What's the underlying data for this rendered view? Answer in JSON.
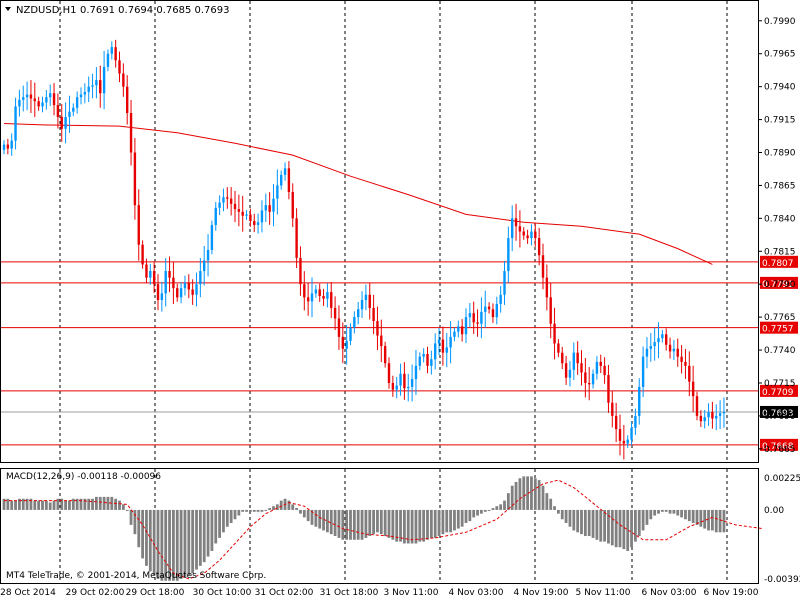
{
  "header": {
    "symbol": "NZDUSD,H1",
    "ohlc": "0.7691 0.7694 0.7685 0.7693",
    "dropdown_icon": "triangle-down-icon"
  },
  "macd_panel": {
    "label": "MACD(12,26,9) -0.00118 -0.00096",
    "scale_labels": [
      "0.00225",
      "0.00",
      "-0.00392"
    ]
  },
  "footer": {
    "copyright": "MT4 TeleTrade, © 2001-2014, MetaQuotes Software Corp."
  },
  "colors": {
    "bull_candle": "#0096ff",
    "bear_candle": "#e60000",
    "moving_average": "#e60000",
    "level_line": "#e60000",
    "price_tag_bg": "#e60000",
    "current_price_line": "#9e9e9e",
    "macd_histogram": "#808080",
    "macd_signal": "#e60000"
  },
  "chart_data": [
    {
      "type": "candlestick",
      "title": "NZDUSD,H1",
      "ylim": [
        0.7655,
        0.8002
      ],
      "yticks": [
        "0.7990",
        "0.7965",
        "0.7940",
        "0.7915",
        "0.7890",
        "0.7865",
        "0.7840",
        "0.7815",
        "0.7790",
        "0.7765",
        "0.7740",
        "0.7715",
        "0.7690",
        "0.7665"
      ],
      "x_tick_labels": [
        "28 Oct 2014",
        "29 Oct 02:00",
        "29 Oct 18:00",
        "30 Oct 10:00",
        "31 Oct 02:00",
        "31 Oct 18:00",
        "3 Nov 11:00",
        "4 Nov 03:00",
        "4 Nov 19:00",
        "5 Nov 11:00",
        "6 Nov 03:00",
        "6 Nov 19:00"
      ],
      "last_ohlc": {
        "open": 0.7691,
        "high": 0.7694,
        "low": 0.7685,
        "close": 0.7693
      },
      "horizontal_levels": [
        "0.7807",
        "0.7791",
        "0.7757",
        "0.7709",
        "0.7668"
      ],
      "current_price": "0.7693",
      "moving_average": [
        [
          0,
          0.7912
        ],
        [
          10,
          0.7911
        ],
        [
          30,
          0.791
        ],
        [
          45,
          0.7905
        ],
        [
          60,
          0.7897
        ],
        [
          75,
          0.7888
        ],
        [
          90,
          0.7872
        ],
        [
          105,
          0.7858
        ],
        [
          120,
          0.7843
        ],
        [
          135,
          0.7837
        ],
        [
          150,
          0.7834
        ],
        [
          165,
          0.7828
        ],
        [
          175,
          0.7817
        ],
        [
          184,
          0.7805
        ]
      ],
      "closes": [
        0.7896,
        0.7893,
        0.7899,
        0.7925,
        0.793,
        0.7932,
        0.7934,
        0.7931,
        0.7929,
        0.7925,
        0.7928,
        0.7932,
        0.7935,
        0.7926,
        0.7917,
        0.7908,
        0.7917,
        0.7921,
        0.7924,
        0.7932,
        0.7934,
        0.7936,
        0.794,
        0.7941,
        0.7945,
        0.7935,
        0.7955,
        0.7965,
        0.797,
        0.796,
        0.795,
        0.794,
        0.792,
        0.789,
        0.785,
        0.782,
        0.7805,
        0.7795,
        0.78,
        0.779,
        0.7778,
        0.7783,
        0.78,
        0.7795,
        0.7787,
        0.778,
        0.7787,
        0.7791,
        0.7786,
        0.7782,
        0.779,
        0.78,
        0.7808,
        0.7816,
        0.7835,
        0.7848,
        0.7852,
        0.7856,
        0.7855,
        0.7851,
        0.7847,
        0.7845,
        0.7842,
        0.7843,
        0.7838,
        0.7835,
        0.7837,
        0.7846,
        0.785,
        0.7845,
        0.7855,
        0.7865,
        0.7873,
        0.7878,
        0.786,
        0.784,
        0.781,
        0.779,
        0.778,
        0.7777,
        0.7783,
        0.7786,
        0.7781,
        0.7779,
        0.7784,
        0.7772,
        0.7764,
        0.775,
        0.7741,
        0.7747,
        0.7757,
        0.7765,
        0.7771,
        0.7778,
        0.7782,
        0.7772,
        0.7762,
        0.7751,
        0.7743,
        0.773,
        0.7715,
        0.771,
        0.7713,
        0.7722,
        0.7711,
        0.7712,
        0.7718,
        0.7728,
        0.7735,
        0.7737,
        0.7728,
        0.7733,
        0.7745,
        0.7748,
        0.7738,
        0.7742,
        0.775,
        0.7754,
        0.7758,
        0.7752,
        0.7765,
        0.7768,
        0.7761,
        0.776,
        0.7769,
        0.7773,
        0.7771,
        0.7765,
        0.7775,
        0.7782,
        0.78,
        0.7825,
        0.784,
        0.7834,
        0.783,
        0.7827,
        0.7825,
        0.783,
        0.7825,
        0.7812,
        0.7795,
        0.778,
        0.776,
        0.7745,
        0.7738,
        0.773,
        0.7719,
        0.7725,
        0.7738,
        0.773,
        0.7723,
        0.7715,
        0.7714,
        0.7722,
        0.7731,
        0.7728,
        0.7721,
        0.77,
        0.769,
        0.768,
        0.7671,
        0.7669,
        0.7672,
        0.7681,
        0.769,
        0.7712,
        0.7735,
        0.7741,
        0.7743,
        0.7746,
        0.7749,
        0.7752,
        0.7744,
        0.7739,
        0.7741,
        0.7735,
        0.7731,
        0.7728,
        0.7716,
        0.7705,
        0.769,
        0.7686,
        0.7689,
        0.7693,
        0.7688,
        0.769,
        0.7692,
        0.7693
      ]
    },
    {
      "type": "bar",
      "title": "MACD(12,26,9) -0.00118 -0.00096",
      "ylim": [
        -0.00392,
        0.00225
      ],
      "series": [
        {
          "name": "MACD",
          "values": [
            0.0006,
            0.0006,
            0.0005,
            0.0005,
            0.0006,
            0.0006,
            0.0006,
            0.0006,
            0.0005,
            0.0005,
            0.0005,
            0.0005,
            0.0004,
            0.0005,
            0.0006,
            0.0006,
            0.0005,
            0.0005,
            0.0006,
            0.0006,
            0.0006,
            0.0006,
            0.0006,
            0.0006,
            0.0007,
            0.0007,
            0.0007,
            0.0007,
            0.0007,
            0.0006,
            0.0005,
            0.0003,
            0.0,
            -0.0008,
            -0.0013,
            -0.002,
            -0.0026,
            -0.003,
            -0.0033,
            -0.0035,
            -0.0037,
            -0.0038,
            -0.0038,
            -0.0038,
            -0.0038,
            -0.0038,
            -0.0037,
            -0.0036,
            -0.0035,
            -0.0034,
            -0.0032,
            -0.003,
            -0.0028,
            -0.0025,
            -0.0022,
            -0.0018,
            -0.0015,
            -0.0012,
            -0.0009,
            -0.0007,
            -0.0005,
            -0.0003,
            -0.0001,
            -0.0001,
            -0.0001,
            -0.0001,
            -0.0001,
            -0.0001,
            0.0,
            0.0001,
            0.0002,
            0.0003,
            0.0005,
            0.0006,
            0.0005,
            0.0003,
            0.0001,
            -0.0002,
            -0.0004,
            -0.0006,
            -0.0008,
            -0.0009,
            -0.001,
            -0.0011,
            -0.0012,
            -0.0013,
            -0.0014,
            -0.0015,
            -0.0016,
            -0.0016,
            -0.0016,
            -0.0016,
            -0.0016,
            -0.0016,
            -0.0015,
            -0.0014,
            -0.0013,
            -0.0012,
            -0.0013,
            -0.0014,
            -0.0015,
            -0.0016,
            -0.0017,
            -0.0017,
            -0.0018,
            -0.0018,
            -0.0018,
            -0.0018,
            -0.0017,
            -0.0017,
            -0.0016,
            -0.0015,
            -0.0015,
            -0.0014,
            -0.0013,
            -0.0012,
            -0.0012,
            -0.0011,
            -0.001,
            -0.0009,
            -0.0007,
            -0.0006,
            -0.0004,
            -0.0003,
            -0.0002,
            -0.0001,
            0.0,
            0.0001,
            0.0002,
            0.0003,
            0.0005,
            0.0009,
            0.0013,
            0.0015,
            0.0017,
            0.0018,
            0.0018,
            0.0018,
            0.0017,
            0.0016,
            0.0013,
            0.0009,
            0.0006,
            0.0002,
            -0.0002,
            -0.0005,
            -0.0007,
            -0.0009,
            -0.0011,
            -0.0012,
            -0.0013,
            -0.0014,
            -0.0014,
            -0.0015,
            -0.0016,
            -0.0017,
            -0.0017,
            -0.0018,
            -0.0019,
            -0.002,
            -0.002,
            -0.0021,
            -0.0022,
            -0.002,
            -0.0017,
            -0.0014,
            -0.0011,
            -0.0008,
            -0.0005,
            -0.0003,
            -0.0002,
            -0.0001,
            -0.0001,
            -0.0002,
            -0.0002,
            -0.0003,
            -0.0004,
            -0.0005,
            -0.0006,
            -0.0007,
            -0.0008,
            -0.0009,
            -0.001,
            -0.0011,
            -0.0011,
            -0.0012,
            -0.0012,
            -0.0012
          ]
        },
        {
          "name": "Signal",
          "values": [
            [
              0,
              0.0005
            ],
            [
              20,
              0.0005
            ],
            [
              32,
              0.0003
            ],
            [
              36,
              -0.0008
            ],
            [
              40,
              -0.0022
            ],
            [
              44,
              -0.0034
            ],
            [
              48,
              -0.0037
            ],
            [
              52,
              -0.0034
            ],
            [
              56,
              -0.0027
            ],
            [
              60,
              -0.0018
            ],
            [
              64,
              -0.0009
            ],
            [
              68,
              -0.0002
            ],
            [
              72,
              0.0002
            ],
            [
              74,
              0.0004
            ],
            [
              78,
              0.0002
            ],
            [
              82,
              -0.0004
            ],
            [
              88,
              -0.001
            ],
            [
              94,
              -0.0013
            ],
            [
              100,
              -0.0014
            ],
            [
              106,
              -0.0016
            ],
            [
              112,
              -0.0015
            ],
            [
              120,
              -0.0012
            ],
            [
              128,
              -0.0005
            ],
            [
              134,
              0.0006
            ],
            [
              140,
              0.0014
            ],
            [
              144,
              0.0016
            ],
            [
              148,
              0.0012
            ],
            [
              154,
              0.0002
            ],
            [
              160,
              -0.0008
            ],
            [
              166,
              -0.0016
            ],
            [
              172,
              -0.0016
            ],
            [
              178,
              -0.0009
            ],
            [
              184,
              -0.0004
            ],
            [
              190,
              -0.0008
            ],
            [
              197,
              -0.001
            ]
          ]
        }
      ]
    }
  ]
}
